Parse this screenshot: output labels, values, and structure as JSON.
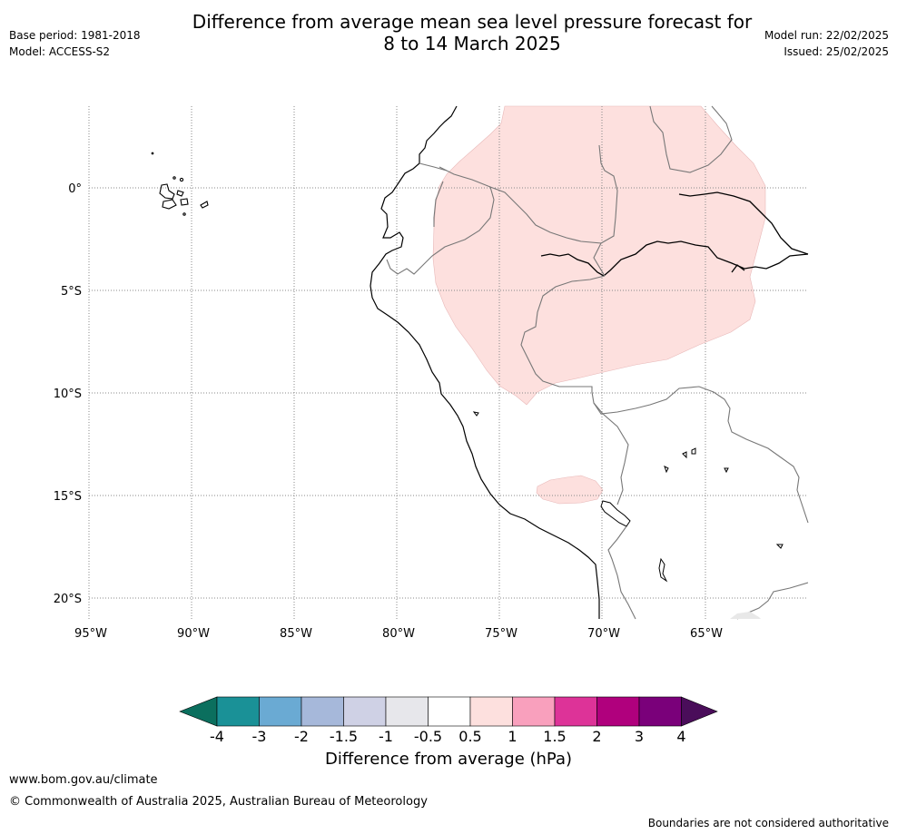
{
  "header": {
    "title_line1": "Difference from average mean sea level pressure forecast for",
    "title_line2": "8 to 14 March 2025",
    "base_period": "Base period: 1981-2018",
    "model": "Model: ACCESS-S2",
    "model_run": "Model run: 22/02/2025",
    "issued": "Issued: 25/02/2025"
  },
  "map": {
    "lat_labels": [
      "0°",
      "5°S",
      "10°S",
      "15°S",
      "20°S"
    ],
    "lon_labels": [
      "95°W",
      "90°W",
      "85°W",
      "80°W",
      "75°W",
      "70°W",
      "65°W"
    ],
    "anomaly_fill_color": "#fde0de",
    "anomaly_category": "0.5 to 1"
  },
  "colorbar": {
    "title": "Difference from average (hPa)",
    "ticks": [
      "-4",
      "-3",
      "-2",
      "-1.5",
      "-1",
      "-0.5",
      "0.5",
      "1",
      "1.5",
      "2",
      "3",
      "4"
    ],
    "colors": [
      "#0b6f5e",
      "#1a9197",
      "#6aaad3",
      "#a6b8da",
      "#cfd1e5",
      "#e7e7eb",
      "#ffffff",
      "#fde0de",
      "#f9a0bd",
      "#dd3398",
      "#b0007d",
      "#7a007a",
      "#4a0d5a"
    ]
  },
  "footer": {
    "website": "www.bom.gov.au/climate",
    "copyright": "© Commonwealth of Australia 2025, Australian Bureau of Meteorology",
    "disclaimer": "Boundaries are not considered authoritative"
  }
}
